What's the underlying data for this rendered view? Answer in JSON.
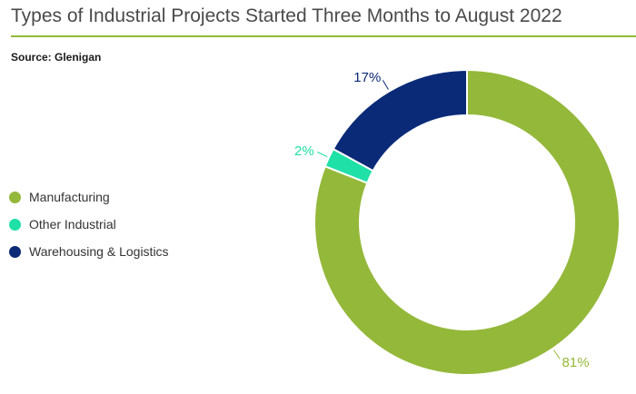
{
  "source": "Source: Glenigan",
  "chart_data": {
    "type": "pie",
    "style": "donut",
    "title": "Types of Industrial Projects Started Three Months to August 2022",
    "categories": [
      "Manufacturing",
      "Other Industrial",
      "Warehousing & Logistics"
    ],
    "values": [
      81,
      2,
      17
    ],
    "value_labels": [
      "81%",
      "2%",
      "17%"
    ],
    "unit": "%",
    "legend_position": "left",
    "colors": [
      "#94b83a",
      "#1fe0a6",
      "#0a2a78"
    ]
  }
}
